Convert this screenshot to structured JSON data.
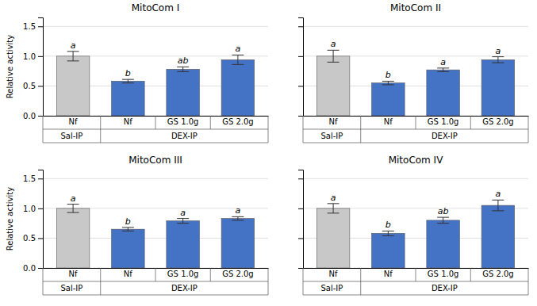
{
  "chart_data": [
    {
      "type": "bar",
      "title": "MitoCom I",
      "ylabel": "Relative activity",
      "categories": [
        "Nf",
        "Nf",
        "GS 1.0g",
        "GS 2.0g"
      ],
      "category_groups": [
        "Sal-IP",
        "DEX-IP",
        "DEX-IP",
        "DEX-IP"
      ],
      "values": [
        1.0,
        0.58,
        0.78,
        0.94
      ],
      "errors": [
        0.08,
        0.03,
        0.04,
        0.08
      ],
      "letters": [
        "a",
        "b",
        "ab",
        "a"
      ],
      "colors": [
        "#c8c8c8",
        "#4472c4",
        "#4472c4",
        "#4472c4"
      ],
      "ylim": [
        0,
        1.65
      ],
      "yticks": [
        {
          "value": 0,
          "label": "0.0"
        },
        0.5,
        {
          "value": 1.0,
          "label": "1.0"
        },
        1.5
      ],
      "grid": true
    },
    {
      "type": "bar",
      "title": "MitoCom II",
      "categories": [
        "Nf",
        "Nf",
        "GS 1.0g",
        "GS 2.0g"
      ],
      "category_groups": [
        "Sal-IP",
        "DEX-IP",
        "DEX-IP",
        "DEX-IP"
      ],
      "values": [
        1.0,
        0.55,
        0.77,
        0.94
      ],
      "errors": [
        0.1,
        0.03,
        0.03,
        0.05
      ],
      "letters": [
        "a",
        "b",
        "a",
        "a"
      ],
      "colors": [
        "#c8c8c8",
        "#4472c4",
        "#4472c4",
        "#4472c4"
      ],
      "ylim": [
        0,
        1.65
      ],
      "yticks": [
        {
          "value": 0,
          "label": "0.0"
        },
        0.5,
        {
          "value": 1.0,
          "label": "1.0"
        },
        1.5
      ],
      "grid": true,
      "tick_labels": "x"
    },
    {
      "type": "bar",
      "title": "MitoCom III",
      "ylabel": "Relative activity",
      "categories": [
        "Nf",
        "Nf",
        "GS 1.0g",
        "GS 2.0g"
      ],
      "category_groups": [
        "Sal-IP",
        "DEX-IP",
        "DEX-IP",
        "DEX-IP"
      ],
      "values": [
        1.0,
        0.65,
        0.79,
        0.83
      ],
      "errors": [
        0.07,
        0.03,
        0.04,
        0.03
      ],
      "letters": [
        "a",
        "b",
        "a",
        "a"
      ],
      "colors": [
        "#c8c8c8",
        "#4472c4",
        "#4472c4",
        "#4472c4"
      ],
      "ylim": [
        0,
        1.65
      ],
      "yticks": [
        {
          "value": 0,
          "label": "0.0"
        },
        0.5,
        {
          "value": 1.0,
          "label": "1.0"
        },
        1.5
      ],
      "grid": true
    },
    {
      "type": "bar",
      "title": "MitoCom IV",
      "categories": [
        "Nf",
        "Nf",
        "GS 1.0g",
        "GS 2.0g"
      ],
      "category_groups": [
        "Sal-IP",
        "DEX-IP",
        "DEX-IP",
        "DEX-IP"
      ],
      "values": [
        1.0,
        0.58,
        0.8,
        1.05
      ],
      "errors": [
        0.08,
        0.04,
        0.05,
        0.09
      ],
      "letters": [
        "a",
        "b",
        "ab",
        "a"
      ],
      "colors": [
        "#c8c8c8",
        "#4472c4",
        "#4472c4",
        "#4472c4"
      ],
      "ylim": [
        0,
        1.65
      ],
      "yticks": [
        {
          "value": 0,
          "label": "0.0"
        },
        0.5,
        {
          "value": 1.0,
          "label": "1.0"
        },
        1.5
      ],
      "grid": true,
      "tick_labels": "x"
    }
  ]
}
